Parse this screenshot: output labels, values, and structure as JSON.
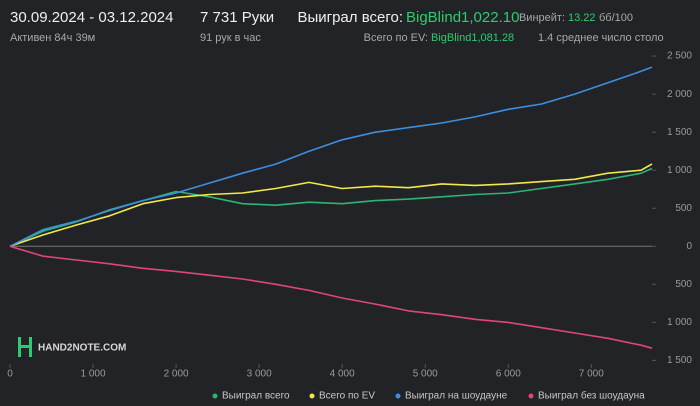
{
  "header": {
    "date_range": "30.09.2024 - 03.12.2024",
    "active": "Активен 84ч 39м",
    "hands": "7 731 Руки",
    "rate": "91 рук в час",
    "won_label": "Выиграл всего:",
    "won_value": "BigBlind1,022.10",
    "ev_label": "Всего по EV:",
    "ev_value": "BigBlind1,081.28",
    "winrate_label": "Винрейт:",
    "winrate_value": "13.22",
    "winrate_unit": "бб/100",
    "tables": "1.4 среднее число столо",
    "logo": "HAND2NOTE.COM"
  },
  "chart_data": {
    "type": "line",
    "x": [
      0,
      400,
      800,
      1200,
      1600,
      2000,
      2400,
      2800,
      3200,
      3600,
      4000,
      4400,
      4800,
      5200,
      5600,
      6000,
      6400,
      6800,
      7200,
      7600,
      7731
    ],
    "series": [
      {
        "name": "Выиграл всего",
        "color": "#2bb673",
        "values": [
          0,
          200,
          320,
          480,
          600,
          720,
          650,
          560,
          540,
          580,
          560,
          600,
          620,
          650,
          680,
          700,
          760,
          820,
          880,
          960,
          1022
        ]
      },
      {
        "name": "Всего по EV",
        "color": "#f2e84a",
        "values": [
          0,
          150,
          280,
          400,
          560,
          640,
          680,
          700,
          760,
          840,
          760,
          790,
          770,
          820,
          800,
          820,
          850,
          880,
          960,
          1000,
          1081
        ]
      },
      {
        "name": "Выиграл на шоудауне",
        "color": "#3b8fe0",
        "values": [
          0,
          220,
          330,
          470,
          600,
          700,
          830,
          960,
          1080,
          1250,
          1400,
          1500,
          1560,
          1620,
          1700,
          1800,
          1870,
          2000,
          2150,
          2300,
          2355
        ]
      },
      {
        "name": "Выиграл без шоудауна",
        "color": "#e0457a",
        "values": [
          0,
          -130,
          -180,
          -230,
          -290,
          -330,
          -380,
          -430,
          -500,
          -580,
          -680,
          -760,
          -850,
          -900,
          -960,
          -1000,
          -1070,
          -1140,
          -1210,
          -1300,
          -1340
        ]
      }
    ],
    "xlim": [
      0,
      7731
    ],
    "xticks": [
      0,
      {
        "value": 1000,
        "label": "1 000"
      },
      {
        "value": 2000,
        "label": "2 000"
      },
      {
        "value": 3000,
        "label": "3 000"
      },
      {
        "value": 4000,
        "label": "4 000"
      },
      {
        "value": 5000,
        "label": "5 000"
      },
      {
        "value": 6000,
        "label": "6 000"
      },
      {
        "value": 7000,
        "label": "7 000"
      }
    ],
    "ylim": [
      -1600,
      2580
    ],
    "yticks": [
      {
        "value": 2500,
        "label": "2 500"
      },
      {
        "value": 2000,
        "label": "2 000"
      },
      {
        "value": 1500,
        "label": "1 500"
      },
      {
        "value": 1000,
        "label": "1 000"
      },
      500,
      0,
      {
        "value": -500,
        "label": "500"
      },
      {
        "value": -1000,
        "label": "1 000"
      },
      {
        "value": -1500,
        "label": "1 500"
      }
    ],
    "grid": false
  }
}
